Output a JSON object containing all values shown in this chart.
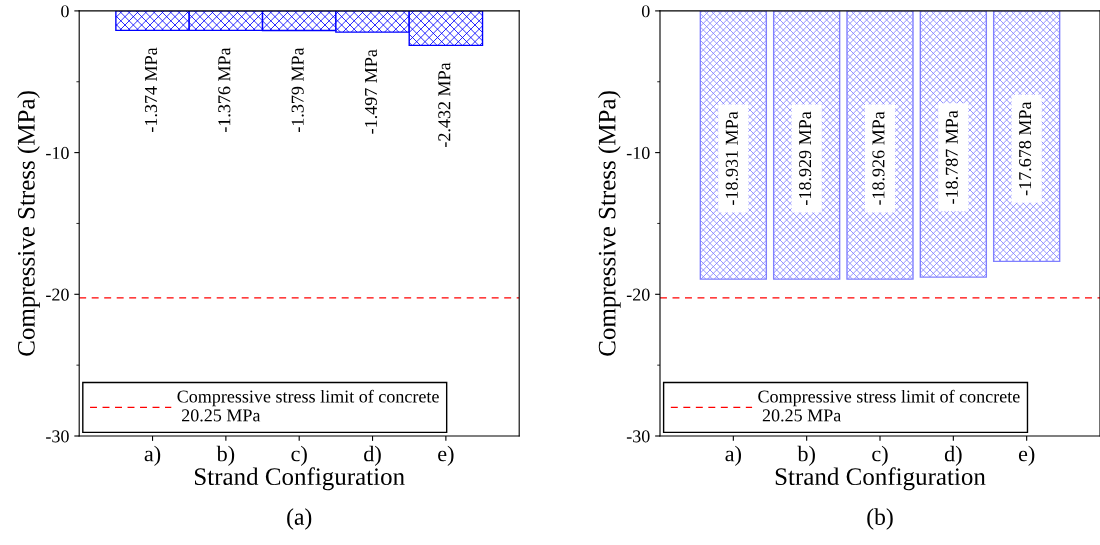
{
  "chart_data": [
    {
      "type": "bar",
      "xlabel": "Strand Configuration",
      "ylabel": "Compressive Stress (MPa)",
      "categories": [
        "a)",
        "b)",
        "c)",
        "d)",
        "e)"
      ],
      "series": [
        {
          "color": "#0000ff",
          "values": [
            -1.374,
            -1.376,
            -1.379,
            -1.497,
            -2.432
          ],
          "value_labels": [
            "-1.374 MPa",
            "-1.376 MPa",
            "-1.379 MPa",
            "-1.497 MPa",
            "-2.432 MPa"
          ]
        }
      ],
      "ylim": [
        -30,
        0
      ],
      "yticks": [
        -30,
        -20,
        -10,
        0
      ],
      "ref_lines": [
        {
          "axis": "y",
          "value": -20.25,
          "label": "Compressive stress limit of concrete\n 20.25 MPa",
          "color": "#ff0000",
          "line_style": "dashed"
        }
      ],
      "legend": "bottom left",
      "grid": false,
      "annotations": [
        "(a)"
      ]
    },
    {
      "type": "bar",
      "xlabel": "Strand Configuration",
      "ylabel": "Compressive Stress (MPa)",
      "categories": [
        "a)",
        "b)",
        "c)",
        "d)",
        "e)"
      ],
      "series": [
        {
          "color": "#8080ff",
          "values": [
            -18.931,
            -18.929,
            -18.926,
            -18.787,
            -17.678
          ],
          "value_labels": [
            "-18.931 MPa",
            "-18.929 MPa",
            "-18.926 MPa",
            "-18.787 MPa",
            "-17.678 MPa"
          ]
        }
      ],
      "ylim": [
        -30,
        0
      ],
      "yticks": [
        -30,
        -20,
        -10,
        0
      ],
      "ref_lines": [
        {
          "axis": "y",
          "value": -20.25,
          "label": "Compressive stress limit of concrete\n 20.25 MPa",
          "color": "#ff0000",
          "line_style": "dashed"
        }
      ],
      "legend": "bottom left",
      "grid": false,
      "annotations": [
        "(b)"
      ]
    }
  ]
}
